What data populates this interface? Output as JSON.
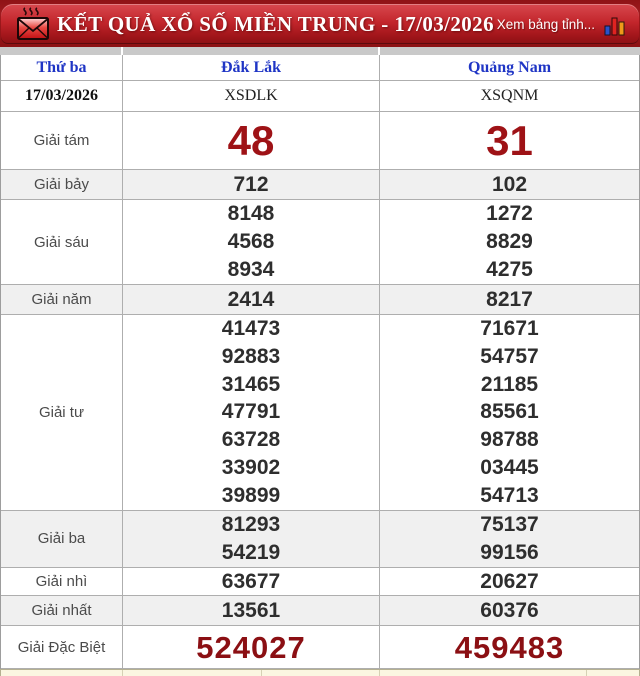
{
  "header": {
    "title": "KẾT QUẢ XỔ SỐ MIỀN TRUNG - 17/03/2026",
    "view_link": "Xem bảng tỉnh...",
    "icons": {
      "left": "envelope-icon",
      "right": "bar-chart-icon"
    },
    "colors": {
      "banner_red": "#c3262c",
      "banner_dark": "#8c1014",
      "text": "#ffffff"
    }
  },
  "table": {
    "columns": [
      "Thứ ba",
      "Đắk Lắk",
      "Quảng Nam"
    ],
    "date": "17/03/2026",
    "station_codes": [
      "XSDLK",
      "XSQNM"
    ],
    "colors": {
      "header_blue": "#1f35c5",
      "number_black": "#2e2e2e",
      "prize8_red": "#9e1216",
      "special_red": "#8b0f13",
      "shaded_row_bg": "#f0f0f0",
      "border_gray": "#aeaeae"
    },
    "prizes": [
      {
        "label": "Giải tám",
        "style": "big-red",
        "shaded": false,
        "dak_lak": [
          "48"
        ],
        "quang_nam": [
          "31"
        ]
      },
      {
        "label": "Giải bảy",
        "style": "normal",
        "shaded": true,
        "dak_lak": [
          "712"
        ],
        "quang_nam": [
          "102"
        ]
      },
      {
        "label": "Giải sáu",
        "style": "normal",
        "shaded": false,
        "dak_lak": [
          "8148",
          "4568",
          "8934"
        ],
        "quang_nam": [
          "1272",
          "8829",
          "4275"
        ]
      },
      {
        "label": "Giải năm",
        "style": "normal",
        "shaded": true,
        "dak_lak": [
          "2414"
        ],
        "quang_nam": [
          "8217"
        ]
      },
      {
        "label": "Giải tư",
        "style": "normal",
        "shaded": false,
        "dak_lak": [
          "41473",
          "92883",
          "31465",
          "47791",
          "63728",
          "33902",
          "39899"
        ],
        "quang_nam": [
          "71671",
          "54757",
          "21185",
          "85561",
          "98788",
          "03445",
          "54713"
        ]
      },
      {
        "label": "Giải ba",
        "style": "normal",
        "shaded": true,
        "dak_lak": [
          "81293",
          "54219"
        ],
        "quang_nam": [
          "75137",
          "99156"
        ]
      },
      {
        "label": "Giải nhì",
        "style": "normal",
        "shaded": false,
        "dak_lak": [
          "63677"
        ],
        "quang_nam": [
          "20627"
        ]
      },
      {
        "label": "Giải nhất",
        "style": "normal",
        "shaded": true,
        "dak_lak": [
          "13561"
        ],
        "quang_nam": [
          "60376"
        ]
      },
      {
        "label": "Giải Đặc Biệt",
        "style": "special-red",
        "shaded": false,
        "dak_lak": [
          "524027"
        ],
        "quang_nam": [
          "459483"
        ]
      }
    ]
  }
}
